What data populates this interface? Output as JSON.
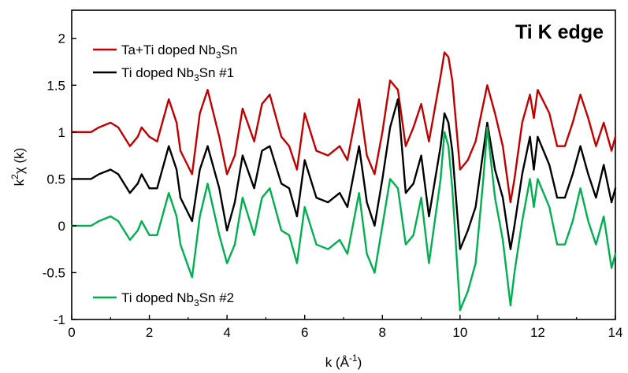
{
  "chart_data": {
    "type": "line",
    "annotation": "Ti K edge",
    "xlabel": {
      "pre": "k (Å",
      "sup": "-1",
      "post": ")"
    },
    "ylabel": {
      "pre": "k",
      "sup": "2",
      "post": "χ (k)"
    },
    "xlim": [
      0,
      14
    ],
    "ylim": [
      -1,
      2.3
    ],
    "x_ticks": [
      0,
      2,
      4,
      6,
      8,
      10,
      12,
      14
    ],
    "x_tick_labels": [
      "0",
      "2",
      "4",
      "6",
      "8",
      "10",
      "12",
      "14"
    ],
    "y_ticks": [
      -1,
      -0.5,
      0,
      0.5,
      1,
      1.5,
      2
    ],
    "y_tick_labels": [
      "-1",
      "-0.5",
      "0",
      "0.5",
      "1",
      "1.5",
      "2"
    ],
    "grid": false,
    "series": [
      {
        "name_parts": {
          "pre": "Ta+Ti doped Nb",
          "sub": "3",
          "post": "Sn"
        },
        "color": "#c00000",
        "legend_position": "top-left",
        "x": [
          0,
          0.5,
          0.7,
          1.0,
          1.2,
          1.5,
          1.7,
          1.8,
          2.0,
          2.2,
          2.5,
          2.7,
          2.8,
          3.1,
          3.3,
          3.5,
          3.8,
          4.0,
          4.2,
          4.4,
          4.7,
          4.9,
          5.1,
          5.4,
          5.6,
          5.8,
          6.0,
          6.3,
          6.6,
          6.9,
          7.1,
          7.4,
          7.6,
          7.8,
          8.0,
          8.2,
          8.4,
          8.6,
          8.8,
          9.0,
          9.2,
          9.5,
          9.6,
          9.7,
          9.8,
          10.0,
          10.2,
          10.4,
          10.6,
          10.7,
          10.9,
          11.1,
          11.3,
          11.4,
          11.6,
          11.8,
          11.9,
          12.0,
          12.3,
          12.5,
          12.7,
          12.9,
          13.1,
          13.3,
          13.5,
          13.7,
          13.9,
          14.0
        ],
        "y": [
          1.0,
          1.0,
          1.05,
          1.1,
          1.05,
          0.85,
          0.95,
          1.05,
          0.95,
          0.9,
          1.35,
          1.1,
          0.8,
          0.55,
          1.2,
          1.45,
          0.95,
          0.55,
          0.75,
          1.25,
          0.9,
          1.3,
          1.4,
          0.95,
          0.85,
          0.6,
          1.2,
          0.8,
          0.75,
          0.85,
          0.7,
          1.35,
          0.75,
          0.55,
          1.0,
          1.55,
          1.45,
          0.85,
          1.05,
          1.3,
          0.9,
          1.6,
          1.85,
          1.8,
          1.55,
          0.6,
          0.7,
          0.9,
          1.3,
          1.5,
          1.2,
          0.85,
          0.25,
          0.5,
          1.1,
          1.4,
          1.15,
          1.45,
          1.2,
          0.85,
          0.85,
          1.1,
          1.4,
          1.15,
          0.85,
          1.1,
          0.8,
          0.95
        ]
      },
      {
        "name_parts": {
          "pre": "Ti doped Nb",
          "sub": "3",
          "post": "Sn #1"
        },
        "color": "#000000",
        "legend_position": "top-left",
        "x": [
          0,
          0.5,
          0.7,
          1.0,
          1.2,
          1.5,
          1.7,
          1.8,
          2.0,
          2.2,
          2.5,
          2.7,
          2.8,
          3.1,
          3.3,
          3.5,
          3.8,
          4.0,
          4.2,
          4.4,
          4.7,
          4.9,
          5.1,
          5.4,
          5.6,
          5.8,
          6.0,
          6.3,
          6.6,
          6.9,
          7.1,
          7.4,
          7.6,
          7.8,
          8.0,
          8.2,
          8.4,
          8.6,
          8.8,
          9.0,
          9.2,
          9.5,
          9.6,
          9.7,
          9.8,
          10.0,
          10.2,
          10.4,
          10.6,
          10.7,
          10.9,
          11.1,
          11.3,
          11.4,
          11.6,
          11.8,
          11.9,
          12.0,
          12.3,
          12.5,
          12.7,
          12.9,
          13.1,
          13.3,
          13.5,
          13.7,
          13.9,
          14.0
        ],
        "y": [
          0.5,
          0.5,
          0.55,
          0.6,
          0.55,
          0.35,
          0.45,
          0.55,
          0.4,
          0.4,
          0.85,
          0.6,
          0.3,
          0.05,
          0.6,
          0.85,
          0.4,
          -0.05,
          0.25,
          0.75,
          0.4,
          0.8,
          0.85,
          0.45,
          0.4,
          0.1,
          0.7,
          0.3,
          0.25,
          0.35,
          0.2,
          0.85,
          0.25,
          0.0,
          0.5,
          1.05,
          1.35,
          0.35,
          0.45,
          0.75,
          0.1,
          0.85,
          1.2,
          1.1,
          0.8,
          -0.25,
          -0.05,
          0.2,
          0.8,
          1.1,
          0.6,
          0.3,
          -0.25,
          0.0,
          0.55,
          0.95,
          0.6,
          0.95,
          0.65,
          0.3,
          0.3,
          0.55,
          0.85,
          0.55,
          0.3,
          0.65,
          0.25,
          0.4
        ]
      },
      {
        "name_parts": {
          "pre": "Ti doped Nb",
          "sub": "3",
          "post": "Sn #2"
        },
        "color": "#00b050",
        "legend_position": "bottom-left",
        "x": [
          0,
          0.5,
          0.7,
          1.0,
          1.2,
          1.5,
          1.7,
          1.8,
          2.0,
          2.2,
          2.5,
          2.7,
          2.8,
          3.1,
          3.3,
          3.5,
          3.8,
          4.0,
          4.2,
          4.4,
          4.7,
          4.9,
          5.1,
          5.4,
          5.6,
          5.8,
          6.0,
          6.3,
          6.6,
          6.9,
          7.1,
          7.4,
          7.6,
          7.8,
          8.0,
          8.2,
          8.4,
          8.6,
          8.8,
          9.0,
          9.2,
          9.5,
          9.6,
          9.7,
          9.8,
          10.0,
          10.2,
          10.4,
          10.6,
          10.7,
          10.9,
          11.1,
          11.3,
          11.4,
          11.6,
          11.8,
          11.9,
          12.0,
          12.3,
          12.5,
          12.7,
          12.9,
          13.1,
          13.3,
          13.5,
          13.7,
          13.9,
          14.0
        ],
        "y": [
          0.0,
          0.0,
          0.05,
          0.1,
          0.05,
          -0.15,
          -0.05,
          0.05,
          -0.1,
          -0.1,
          0.35,
          0.1,
          -0.2,
          -0.55,
          0.1,
          0.45,
          -0.1,
          -0.4,
          -0.2,
          0.3,
          -0.1,
          0.3,
          0.4,
          -0.05,
          -0.1,
          -0.4,
          0.2,
          -0.2,
          -0.25,
          -0.15,
          -0.3,
          0.35,
          -0.3,
          -0.5,
          0.0,
          0.5,
          0.4,
          -0.2,
          -0.1,
          0.3,
          -0.4,
          0.5,
          1.0,
          0.85,
          0.4,
          -0.9,
          -0.7,
          -0.4,
          0.5,
          1.05,
          0.3,
          -0.15,
          -0.85,
          -0.5,
          0.05,
          0.5,
          0.2,
          0.5,
          0.2,
          -0.2,
          -0.2,
          0.05,
          0.4,
          0.05,
          -0.2,
          0.1,
          -0.45,
          -0.3
        ]
      }
    ]
  }
}
